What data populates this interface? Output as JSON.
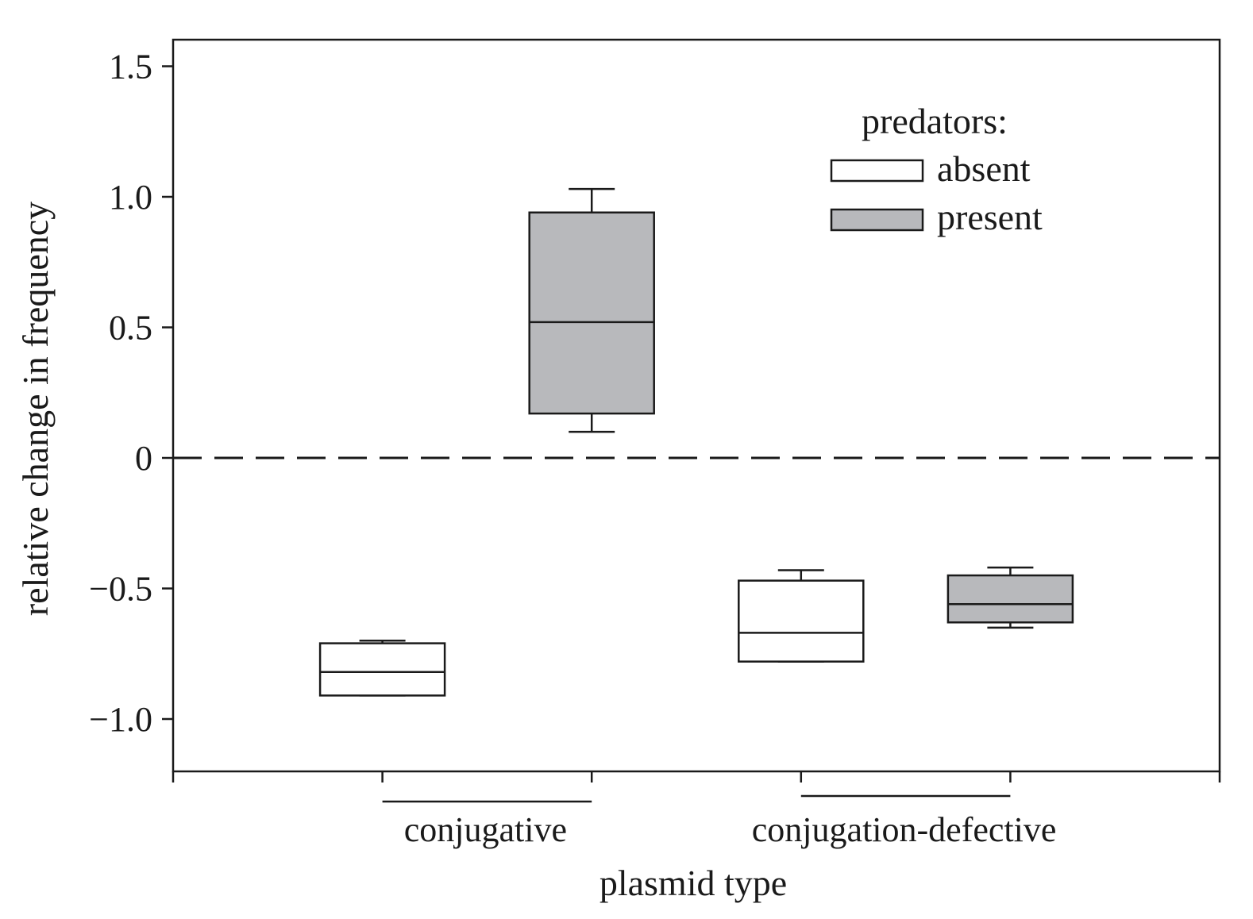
{
  "chart_data": {
    "type": "box",
    "title": "",
    "xlabel": "plasmid type",
    "ylabel": "relative change in frequency",
    "ylim": [
      -1.2,
      1.6
    ],
    "yticks": [
      1.5,
      1.0,
      0.5,
      0,
      -0.5,
      -1.0
    ],
    "ytick_labels": [
      "1.5",
      "1.0",
      "0.5",
      "0",
      "−0.5",
      "−1.0"
    ],
    "reference_line": {
      "y": 0,
      "style": "dashed"
    },
    "categories": [
      "conjugative",
      "conjugation-defective"
    ],
    "legend": {
      "title": "predators:",
      "placement": "top-right",
      "entries": [
        {
          "label": "absent",
          "color": "#ffffff"
        },
        {
          "label": "present",
          "color": "#b8b9bc"
        }
      ]
    },
    "series": [
      {
        "name": "absent",
        "color": "#ffffff",
        "boxes": [
          {
            "whisker_low": -0.91,
            "q1": -0.91,
            "median": -0.82,
            "q3": -0.71,
            "whisker_high": -0.7
          },
          {
            "whisker_low": -0.78,
            "q1": -0.78,
            "median": -0.67,
            "q3": -0.47,
            "whisker_high": -0.43
          }
        ]
      },
      {
        "name": "present",
        "color": "#b8b9bc",
        "boxes": [
          {
            "whisker_low": 0.1,
            "q1": 0.17,
            "median": 0.52,
            "q3": 0.94,
            "whisker_high": 1.03
          },
          {
            "whisker_low": -0.65,
            "q1": -0.63,
            "median": -0.56,
            "q3": -0.45,
            "whisker_high": -0.42
          }
        ]
      }
    ]
  }
}
